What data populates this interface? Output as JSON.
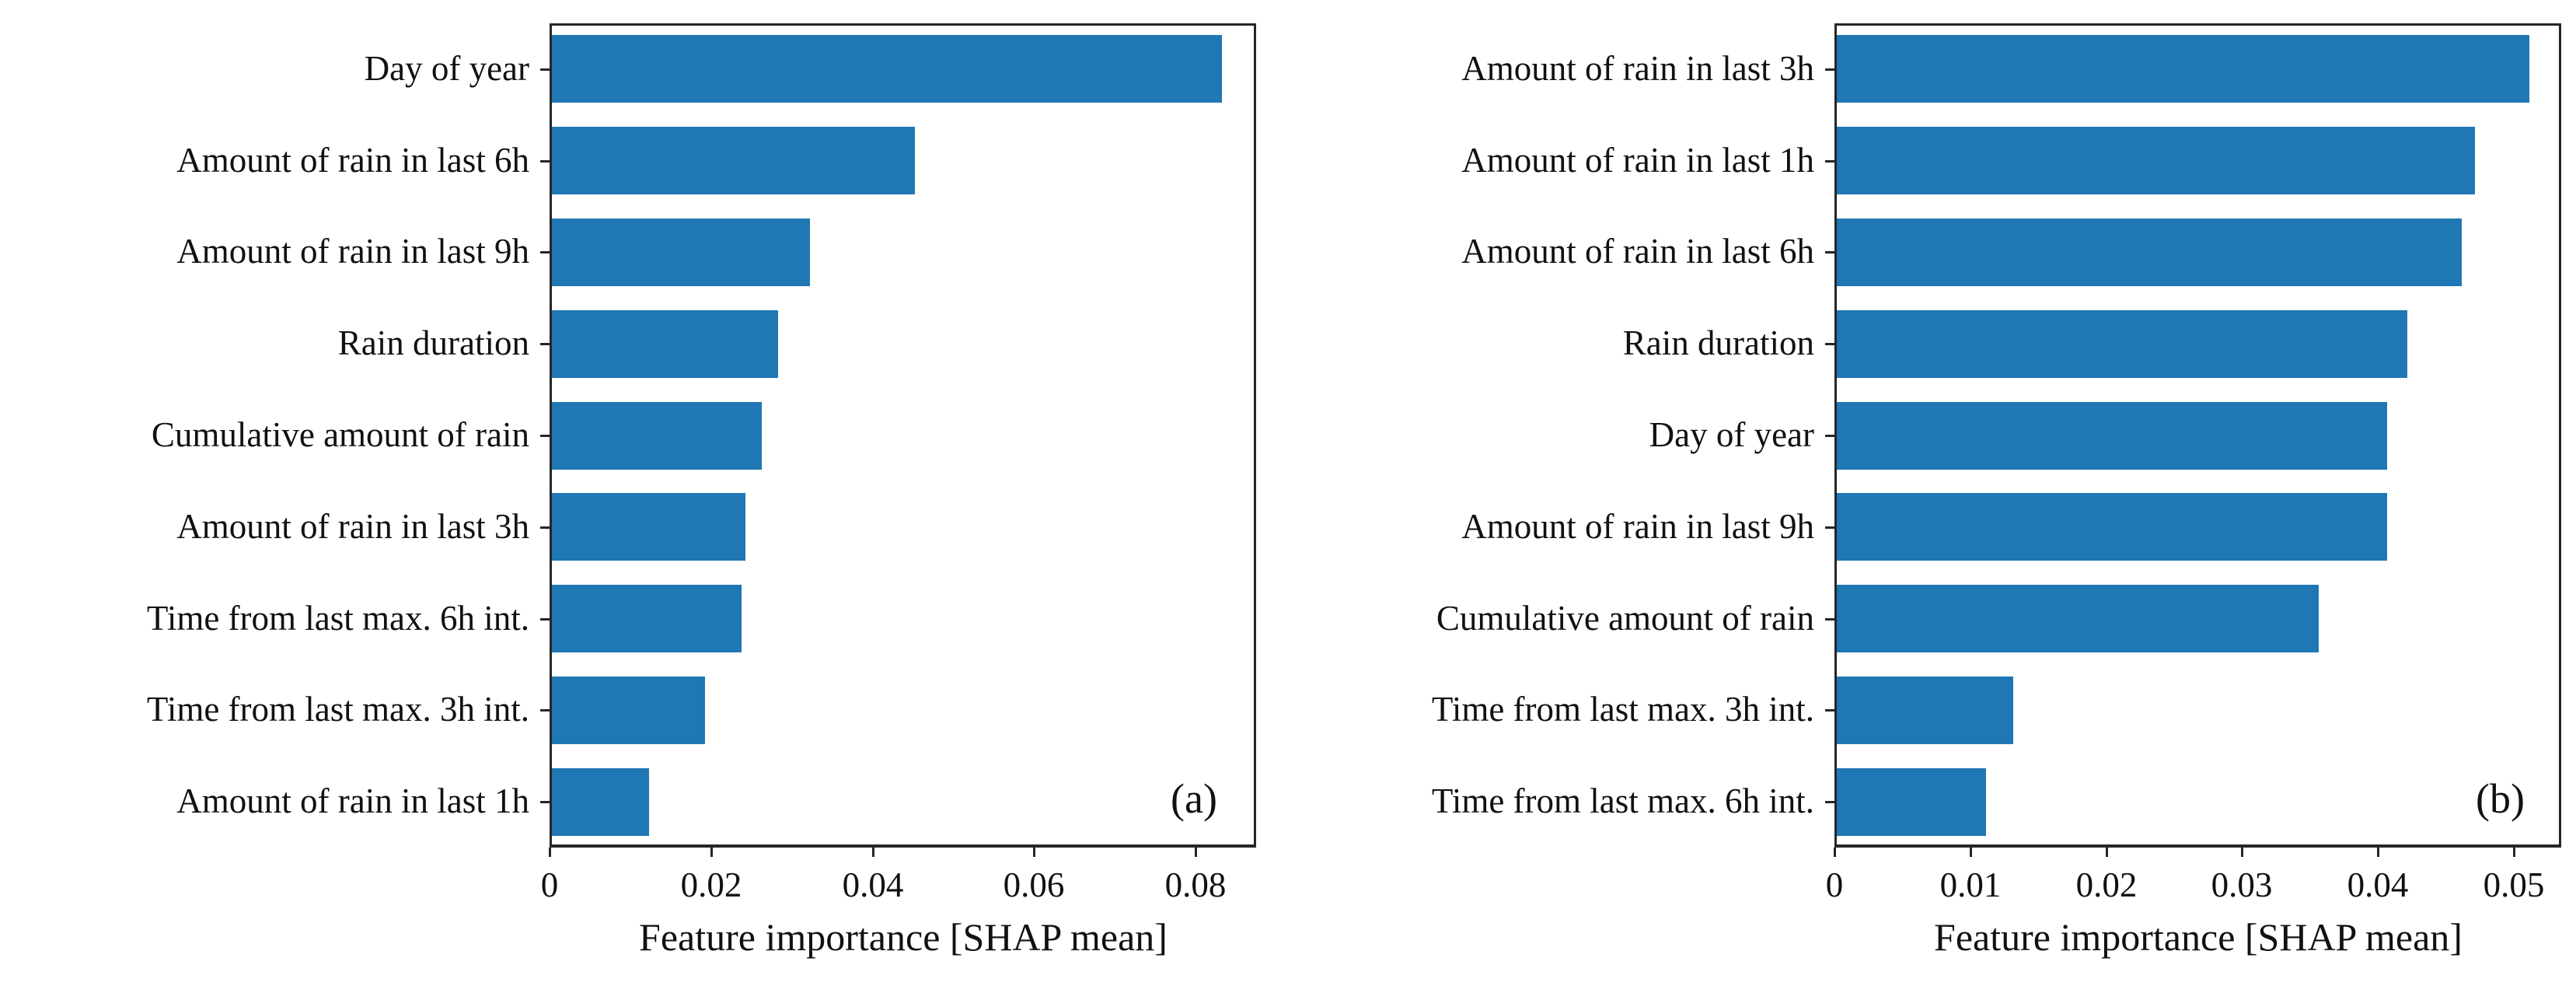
{
  "page": {
    "background": "#ffffff"
  },
  "chart_data": [
    {
      "id": "a",
      "type": "bar",
      "orientation": "horizontal",
      "panel_label": "(a)",
      "title": "",
      "xlabel": "Feature importance [SHAP mean]",
      "ylabel": "",
      "categories": [
        "Day of year",
        "Amount of rain in last 6h",
        "Amount of rain in last 9h",
        "Rain duration",
        "Cumulative amount of rain",
        "Amount of rain in last 3h",
        "Time from last max. 6h int.",
        "Time from last max. 3h int.",
        "Amount of rain in last 1h"
      ],
      "values": [
        0.083,
        0.045,
        0.032,
        0.028,
        0.026,
        0.024,
        0.0235,
        0.019,
        0.012
      ],
      "xlim": [
        0,
        0.0875
      ],
      "xtick_values": [
        0,
        0.02,
        0.04,
        0.06,
        0.08
      ],
      "xtick_labels": [
        "0",
        "0.02",
        "0.04",
        "0.06",
        "0.08"
      ],
      "bar_color": "#1f77b4",
      "grid": false,
      "legend": null
    },
    {
      "id": "b",
      "type": "bar",
      "orientation": "horizontal",
      "panel_label": "(b)",
      "title": "",
      "xlabel": "Feature importance [SHAP mean]",
      "ylabel": "",
      "categories": [
        "Amount of rain in last 3h",
        "Amount of rain in last 1h",
        "Amount of rain in last 6h",
        "Rain duration",
        "Day of year",
        "Amount of rain in last 9h",
        "Cumulative amount of rain",
        "Time from last max. 3h int.",
        "Time from last max. 6h int."
      ],
      "values": [
        0.051,
        0.047,
        0.046,
        0.042,
        0.0405,
        0.0405,
        0.0355,
        0.013,
        0.011
      ],
      "xlim": [
        0,
        0.0535
      ],
      "xtick_values": [
        0,
        0.01,
        0.02,
        0.03,
        0.04,
        0.05
      ],
      "xtick_labels": [
        "0",
        "0.01",
        "0.02",
        "0.03",
        "0.04",
        "0.05"
      ],
      "bar_color": "#1f77b4",
      "grid": false,
      "legend": null
    }
  ]
}
